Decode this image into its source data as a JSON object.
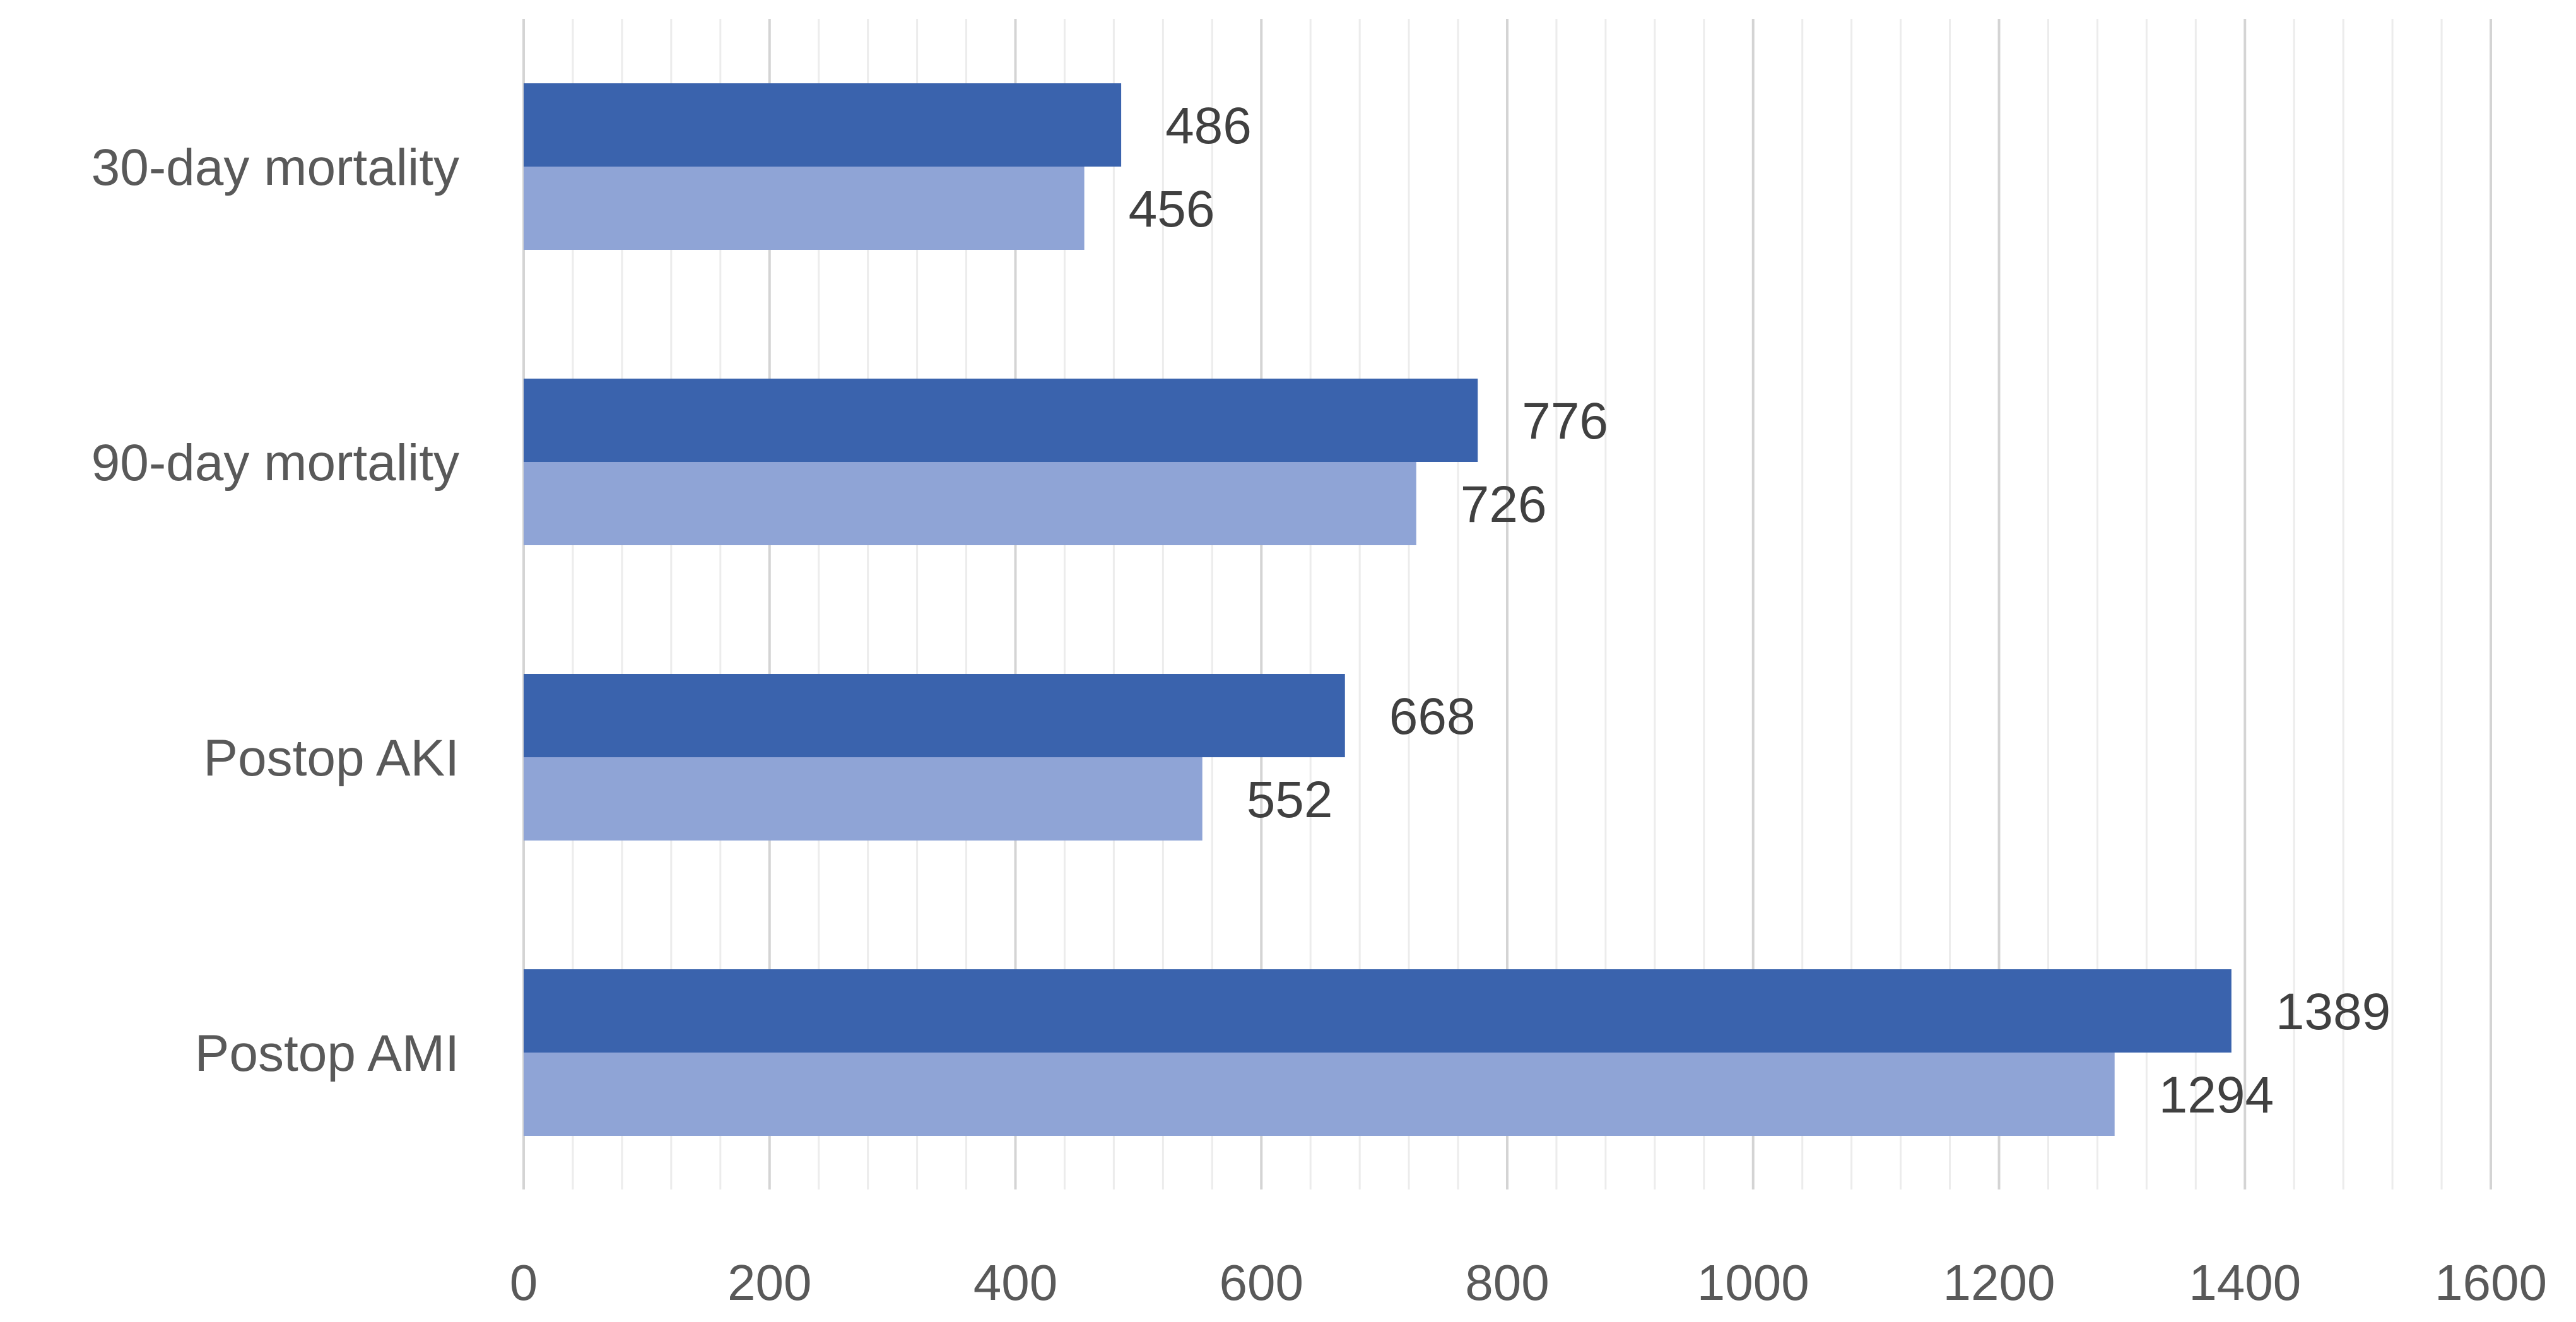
{
  "chart_data": {
    "type": "bar",
    "orientation": "horizontal",
    "title": "",
    "xlabel": "",
    "ylabel": "",
    "categories": [
      "30-day mortality",
      "90-day mortality",
      "Postop AKI",
      "Postop AMI"
    ],
    "series": [
      {
        "values": [
          486,
          776,
          668,
          1389
        ],
        "color": "#3a63ad"
      },
      {
        "values": [
          456,
          726,
          552,
          1294
        ],
        "color": "#8fa4d6"
      }
    ],
    "xlim": [
      0,
      1600
    ],
    "x_ticks": [
      "0",
      "200",
      "400",
      "600",
      "800",
      "1000",
      "1200",
      "1400",
      "1600"
    ],
    "grid": true,
    "legend": "none",
    "data_labels": true
  }
}
